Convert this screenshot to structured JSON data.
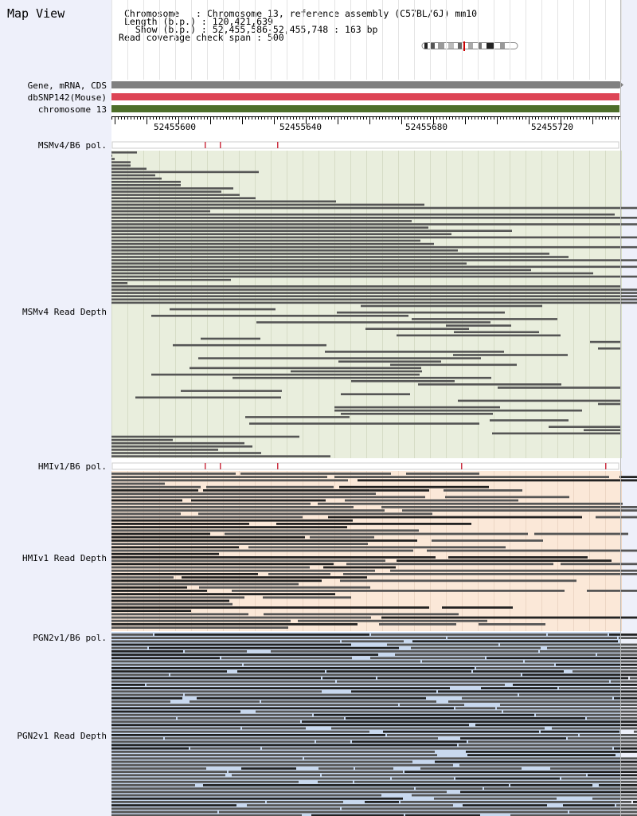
{
  "title": "Map View",
  "info": {
    "chromosome": "Chromosome   : Chromosome 13, reference assembly (C57BL/6J) mm10",
    "length": "Length (b.p.) : 120,421,639",
    "show": "  Show (b.p.) : 52,455,586-52,455,748 : 163 bp",
    "coverage": "Read coverage check span : 500"
  },
  "track_labels": {
    "gene": "Gene, mRNA, CDS",
    "dbsnp": "dbSNP142(Mouse)",
    "chrom": "chromosome 13",
    "msm_pol": "MSMv4/B6 pol.",
    "msm_depth": "MSMv4 Read Depth",
    "hmi_pol": "HMIv1/B6 pol.",
    "hmi_depth": "HMIv1 Read Depth",
    "pgn_pol": "PGN2v1/B6 pol.",
    "pgn_depth": "PGN2v1 Read Depth"
  },
  "ruler": {
    "ticks": [
      "52455600",
      "52455640",
      "52455680",
      "52455720"
    ]
  },
  "colors": {
    "panel_bg": "#eef0fa",
    "gene_track": "#808080",
    "dbsnp_track": "#dd4455",
    "chrom_track": "#4d6e2a",
    "msm_bg": "#e9eedd",
    "hmi_bg": "#fbe8d8",
    "pgn_bg": "#c8d8ee",
    "read_dark": "#555555",
    "read_black": "#222222",
    "snp_marker": "#cc3344"
  }
}
